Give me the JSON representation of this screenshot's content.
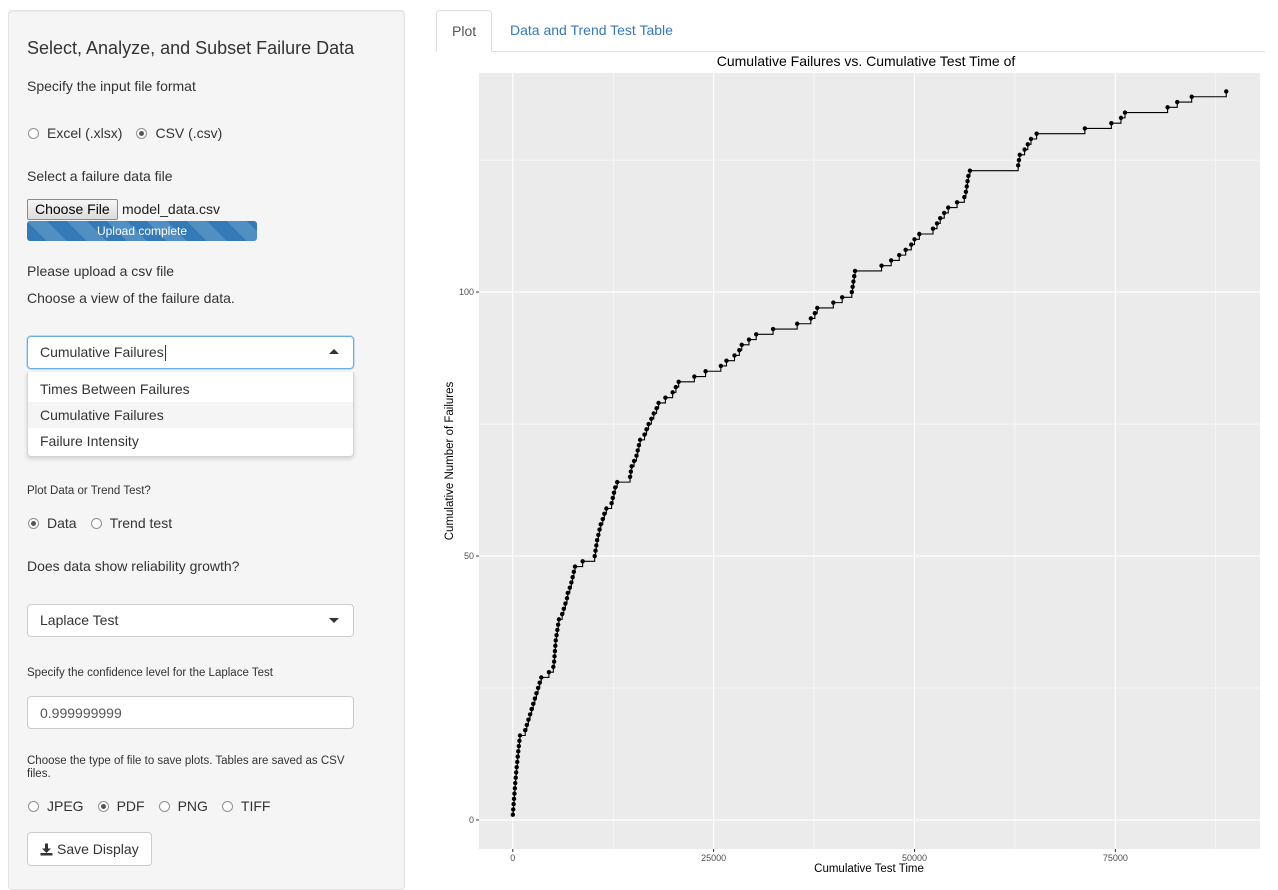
{
  "sidebar": {
    "title": "Select, Analyze, and Subset Failure Data",
    "file_format_label": "Specify the input file format",
    "file_format_options": [
      {
        "label": "Excel (.xlsx)",
        "selected": false
      },
      {
        "label": "CSV (.csv)",
        "selected": true
      }
    ],
    "file_label": "Select a failure data file",
    "choose_file_label": "Choose File",
    "file_name": "model_data.csv",
    "upload_status": "Upload complete",
    "upload_progress": 1.0,
    "upload_note": "Please upload a csv file",
    "view_label": "Choose a view of the failure data.",
    "view_select": {
      "value": "Cumulative Failures",
      "options": [
        "Times Between Failures",
        "Cumulative Failures",
        "Failure Intensity"
      ],
      "highlighted": "Cumulative Failures"
    },
    "plot_or_trend_label": "Plot Data or Trend Test?",
    "plot_or_trend_options": [
      {
        "label": "Data",
        "selected": true
      },
      {
        "label": "Trend test",
        "selected": false
      }
    ],
    "growth_label": "Does data show reliability growth?",
    "trend_test_select": {
      "value": "Laplace Test"
    },
    "confidence_label": "Specify the confidence level for the Laplace Test",
    "confidence_value": "0.999999999",
    "save_type_label": "Choose the type of file to save plots. Tables are saved as CSV files.",
    "save_type_options": [
      {
        "label": "JPEG",
        "selected": false
      },
      {
        "label": "PDF",
        "selected": true
      },
      {
        "label": "PNG",
        "selected": false
      },
      {
        "label": "TIFF",
        "selected": false
      }
    ],
    "save_button_label": "Save Display"
  },
  "tabs": [
    {
      "label": "Plot",
      "active": true
    },
    {
      "label": "Data and Trend Test Table",
      "active": false
    }
  ],
  "colors": {
    "panel_bg": "#ebebeb",
    "grid": "#ffffff",
    "series": "#000000",
    "link": "#337ab7",
    "progress": "#337ab7"
  },
  "chart_data": {
    "type": "line",
    "title": "Cumulative Failures vs. Cumulative Test Time of",
    "xlabel": "Cumulative Test Time",
    "ylabel": "Cumulative Number of Failures",
    "x_ticks": [
      0,
      25000,
      50000,
      75000
    ],
    "y_ticks": [
      0,
      50,
      100
    ],
    "xlim": [
      -4200,
      93000
    ],
    "ylim": [
      -5.5,
      141.5
    ],
    "grid": true,
    "step": true,
    "markers": true,
    "series": [
      {
        "points": [
          [
            10,
            1
          ],
          [
            60,
            2
          ],
          [
            110,
            3
          ],
          [
            160,
            4
          ],
          [
            210,
            5
          ],
          [
            260,
            6
          ],
          [
            310,
            7
          ],
          [
            370,
            8
          ],
          [
            430,
            9
          ],
          [
            490,
            10
          ],
          [
            560,
            11
          ],
          [
            620,
            12
          ],
          [
            690,
            13
          ],
          [
            760,
            14
          ],
          [
            830,
            15
          ],
          [
            900,
            16
          ],
          [
            1550,
            17
          ],
          [
            1750,
            18
          ],
          [
            1950,
            19
          ],
          [
            2150,
            20
          ],
          [
            2350,
            21
          ],
          [
            2550,
            22
          ],
          [
            2750,
            23
          ],
          [
            2950,
            24
          ],
          [
            3150,
            25
          ],
          [
            3350,
            26
          ],
          [
            3550,
            27
          ],
          [
            4500,
            28
          ],
          [
            5050,
            29
          ],
          [
            5150,
            30
          ],
          [
            5200,
            31
          ],
          [
            5250,
            32
          ],
          [
            5300,
            33
          ],
          [
            5350,
            34
          ],
          [
            5450,
            35
          ],
          [
            5550,
            36
          ],
          [
            5650,
            37
          ],
          [
            5750,
            38
          ],
          [
            6150,
            39
          ],
          [
            6350,
            40
          ],
          [
            6550,
            41
          ],
          [
            6750,
            42
          ],
          [
            6850,
            43
          ],
          [
            7100,
            44
          ],
          [
            7300,
            45
          ],
          [
            7450,
            46
          ],
          [
            7600,
            47
          ],
          [
            7750,
            48
          ],
          [
            8700,
            49
          ],
          [
            10200,
            50
          ],
          [
            10300,
            51
          ],
          [
            10400,
            52
          ],
          [
            10500,
            53
          ],
          [
            10650,
            54
          ],
          [
            10800,
            55
          ],
          [
            10950,
            56
          ],
          [
            11200,
            57
          ],
          [
            11400,
            58
          ],
          [
            11650,
            59
          ],
          [
            12300,
            60
          ],
          [
            12450,
            61
          ],
          [
            12600,
            62
          ],
          [
            12750,
            63
          ],
          [
            13000,
            64
          ],
          [
            14600,
            65
          ],
          [
            14700,
            66
          ],
          [
            14800,
            67
          ],
          [
            15100,
            68
          ],
          [
            15400,
            69
          ],
          [
            15550,
            70
          ],
          [
            15700,
            71
          ],
          [
            15850,
            72
          ],
          [
            16400,
            73
          ],
          [
            16650,
            74
          ],
          [
            16900,
            75
          ],
          [
            17250,
            76
          ],
          [
            17550,
            77
          ],
          [
            17900,
            78
          ],
          [
            18150,
            79
          ],
          [
            19000,
            80
          ],
          [
            19900,
            81
          ],
          [
            20300,
            82
          ],
          [
            20650,
            83
          ],
          [
            22600,
            84
          ],
          [
            24000,
            85
          ],
          [
            25900,
            86
          ],
          [
            26600,
            87
          ],
          [
            27600,
            88
          ],
          [
            28200,
            89
          ],
          [
            28500,
            90
          ],
          [
            29400,
            91
          ],
          [
            30300,
            92
          ],
          [
            32400,
            93
          ],
          [
            35400,
            94
          ],
          [
            37100,
            95
          ],
          [
            37600,
            96
          ],
          [
            37900,
            97
          ],
          [
            39900,
            98
          ],
          [
            41000,
            99
          ],
          [
            42200,
            100
          ],
          [
            42300,
            101
          ],
          [
            42400,
            102
          ],
          [
            42500,
            103
          ],
          [
            42600,
            104
          ],
          [
            45900,
            105
          ],
          [
            47100,
            106
          ],
          [
            48100,
            107
          ],
          [
            48900,
            108
          ],
          [
            49600,
            109
          ],
          [
            50000,
            110
          ],
          [
            50600,
            111
          ],
          [
            52300,
            112
          ],
          [
            52800,
            113
          ],
          [
            53200,
            114
          ],
          [
            53700,
            115
          ],
          [
            54200,
            116
          ],
          [
            55300,
            117
          ],
          [
            56200,
            118
          ],
          [
            56400,
            119
          ],
          [
            56500,
            120
          ],
          [
            56600,
            121
          ],
          [
            56700,
            122
          ],
          [
            56900,
            123
          ],
          [
            62900,
            124
          ],
          [
            63000,
            125
          ],
          [
            63100,
            126
          ],
          [
            63700,
            127
          ],
          [
            64100,
            128
          ],
          [
            64500,
            129
          ],
          [
            65200,
            130
          ],
          [
            71200,
            131
          ],
          [
            74500,
            132
          ],
          [
            75700,
            133
          ],
          [
            76200,
            134
          ],
          [
            81500,
            135
          ],
          [
            82700,
            136
          ],
          [
            84500,
            137
          ],
          [
            88800,
            138
          ]
        ]
      }
    ]
  }
}
